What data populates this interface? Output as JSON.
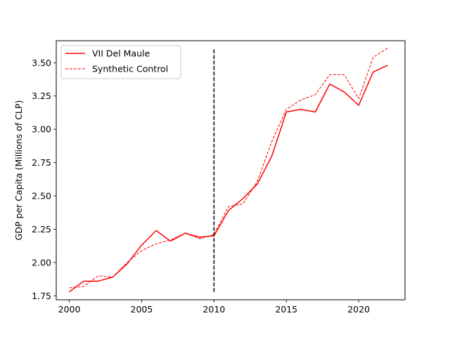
{
  "chart_data": {
    "type": "line",
    "title": "",
    "xlabel": "",
    "ylabel": "GDP per Capita (Millions of CLP)",
    "xlim": [
      1999.1,
      2023.2
    ],
    "ylim": [
      1.72,
      3.665
    ],
    "xticks": [
      2000,
      2005,
      2010,
      2015,
      2020
    ],
    "yticks": [
      1.75,
      2.0,
      2.25,
      2.5,
      2.75,
      3.0,
      3.25,
      3.5
    ],
    "ytick_labels": [
      "1.75",
      "2.00",
      "2.25",
      "2.50",
      "2.75",
      "3.00",
      "3.25",
      "3.50"
    ],
    "grid": false,
    "legend_position": "top-left",
    "x": [
      2000,
      2001,
      2002,
      2003,
      2004,
      2005,
      2006,
      2007,
      2008,
      2009,
      2010,
      2011,
      2012,
      2013,
      2014,
      2015,
      2016,
      2017,
      2018,
      2019,
      2020,
      2021,
      2022
    ],
    "series": [
      {
        "name": "VII Del Maule",
        "color": "#ff0000",
        "style": "solid",
        "values": [
          1.78,
          1.86,
          1.86,
          1.89,
          1.99,
          2.13,
          2.24,
          2.16,
          2.22,
          2.19,
          2.2,
          2.39,
          2.48,
          2.59,
          2.8,
          3.13,
          3.15,
          3.13,
          3.34,
          3.28,
          3.18,
          3.43,
          3.48
        ]
      },
      {
        "name": "Synthetic Control",
        "color": "#ff0000",
        "style": "dashed",
        "values": [
          1.81,
          1.82,
          1.9,
          1.89,
          2.0,
          2.09,
          2.14,
          2.17,
          2.22,
          2.18,
          2.21,
          2.42,
          2.44,
          2.61,
          2.91,
          3.15,
          3.22,
          3.26,
          3.41,
          3.41,
          3.23,
          3.54,
          3.61
        ]
      }
    ],
    "annotations": [
      {
        "type": "vline",
        "x": 2010,
        "y_from": 1.78,
        "y_to": 3.6,
        "color": "#000000",
        "style": "dashed"
      }
    ]
  }
}
